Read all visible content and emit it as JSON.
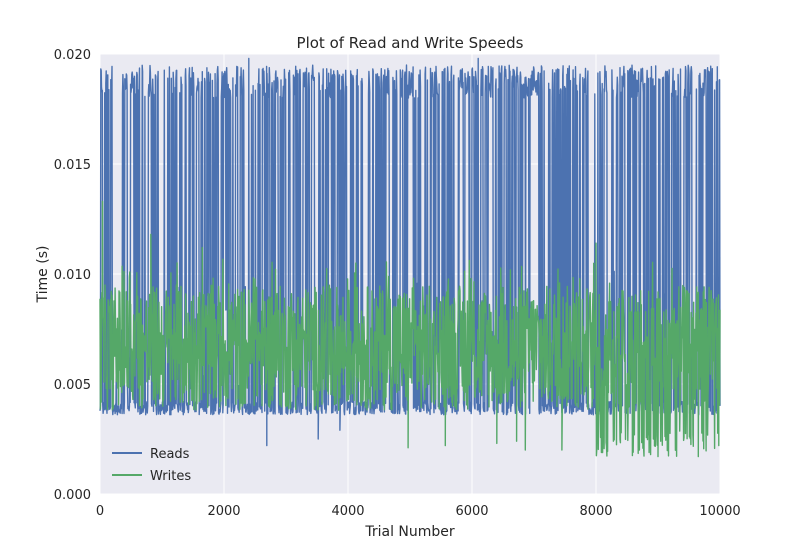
{
  "chart_data": {
    "type": "line",
    "title": "Plot of Read and Write Speeds",
    "xlabel": "Trial Number",
    "ylabel": "Time (s)",
    "xlim": [
      0,
      10000
    ],
    "ylim": [
      0.0,
      0.02
    ],
    "xticks": [
      0,
      2000,
      4000,
      6000,
      8000,
      10000
    ],
    "xtick_labels": [
      "0",
      "2000",
      "4000",
      "6000",
      "8000",
      "10000"
    ],
    "yticks": [
      0.0,
      0.005,
      0.01,
      0.015,
      0.02
    ],
    "ytick_labels": [
      "0.000",
      "0.005",
      "0.010",
      "0.015",
      "0.020"
    ],
    "grid": true,
    "legend_position": "lower-left",
    "series": [
      {
        "name": "Reads",
        "color": "#4c72b0",
        "description": "dense trace; baseline about 0.0036-0.0042 s with very frequent spikes to about 0.0185-0.0195 s; isolated dips near 0.0022-0.003 s",
        "baseline": [
          0.0036,
          0.0042
        ],
        "spike_level": [
          0.018,
          0.0195
        ],
        "max": 0.0198,
        "min": 0.0022,
        "dips": [
          {
            "x": 2690,
            "y": 0.0022
          },
          {
            "x": 3520,
            "y": 0.0025
          },
          {
            "x": 3870,
            "y": 0.0029
          }
        ]
      },
      {
        "name": "Writes",
        "color": "#55a868",
        "description": "dense trace; mostly between about 0.004 and 0.009 s; peak about 0.0133 s near the start; drops to about 0.0017-0.002 s after trial 8000",
        "band": [
          0.0038,
          0.0095
        ],
        "max": 0.0133,
        "max_at": 40,
        "min": 0.0017,
        "peaks": [
          {
            "x": 40,
            "y": 0.0133
          },
          {
            "x": 820,
            "y": 0.0118
          },
          {
            "x": 8000,
            "y": 0.0114
          },
          {
            "x": 1650,
            "y": 0.0112
          }
        ],
        "dips": [
          {
            "x": 4970,
            "y": 0.0021
          },
          {
            "x": 5570,
            "y": 0.0022
          },
          {
            "x": 6400,
            "y": 0.0023
          },
          {
            "x": 6720,
            "y": 0.0024
          },
          {
            "x": 6860,
            "y": 0.002
          },
          {
            "x": 7450,
            "y": 0.002
          },
          {
            "x": 8100,
            "y": 0.0021
          },
          {
            "x": 8600,
            "y": 0.0019
          },
          {
            "x": 9000,
            "y": 0.0017
          },
          {
            "x": 9300,
            "y": 0.0018
          },
          {
            "x": 9650,
            "y": 0.0017
          },
          {
            "x": 9980,
            "y": 0.0022
          }
        ]
      }
    ]
  }
}
